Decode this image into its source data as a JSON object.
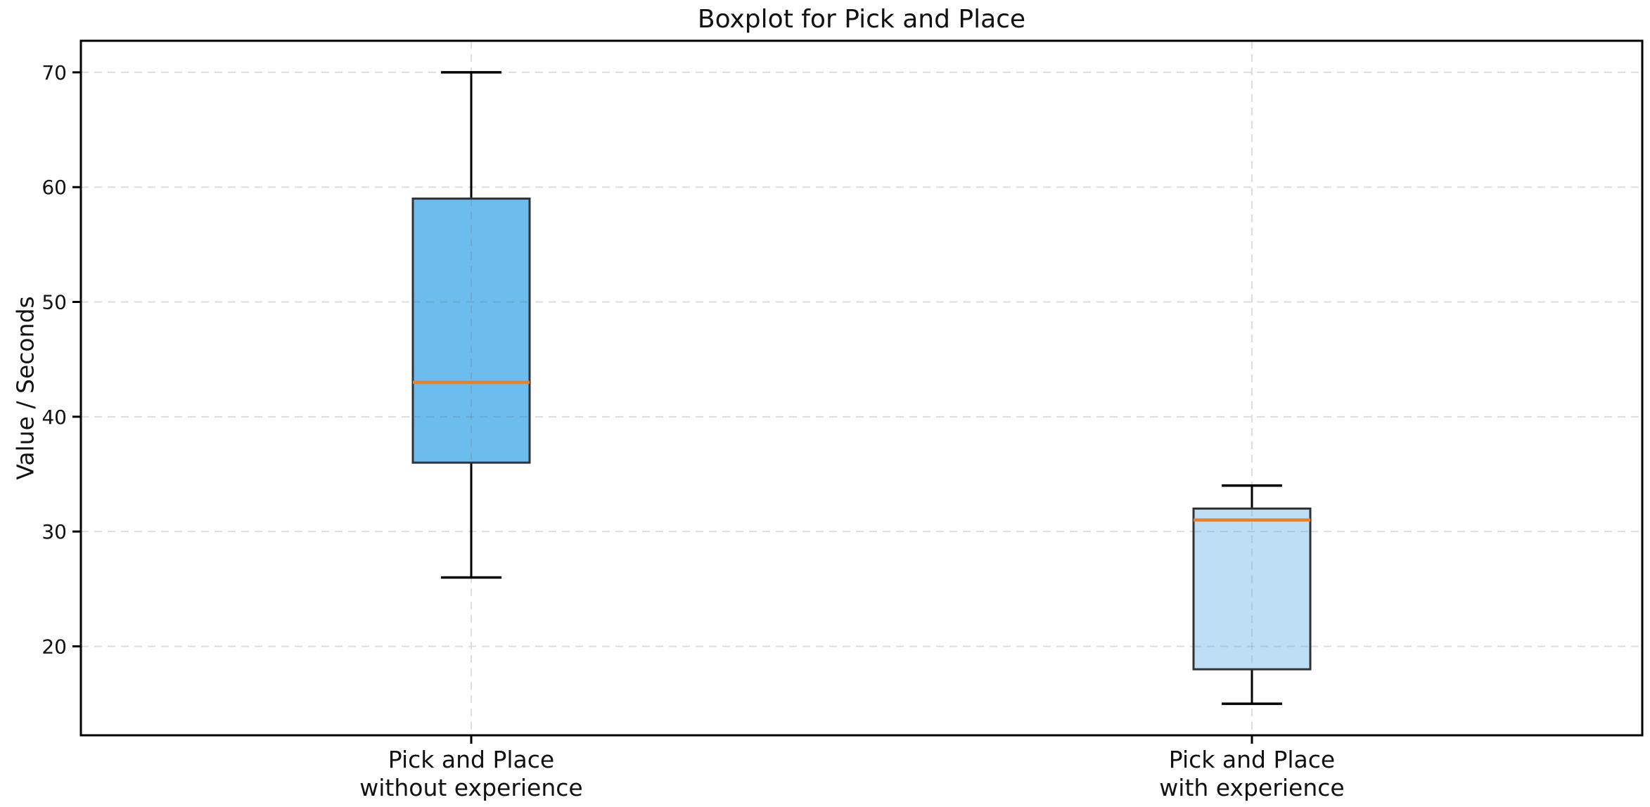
{
  "chart_data": {
    "type": "boxplot",
    "title": "Boxplot for Pick and Place",
    "ylabel": "Value / Seconds",
    "xlabel": "",
    "ylim": [
      12.25,
      72.75
    ],
    "yticks": [
      20,
      30,
      40,
      50,
      60,
      70
    ],
    "grid": true,
    "grid_style": "dashed",
    "legend": "none",
    "categories": [
      "Pick and Place\nwithout experience",
      "Pick and Place\nwith experience"
    ],
    "series": [
      {
        "name": "Pick and Place without experience",
        "whisker_low": 26,
        "q1": 36,
        "median": 43,
        "q3": 59,
        "whisker_high": 70,
        "box_color": "#6CBCEE"
      },
      {
        "name": "Pick and Place with experience",
        "whisker_low": 15,
        "q1": 18,
        "median": 31,
        "q3": 32,
        "whisker_high": 34,
        "box_color": "#BDDEF5"
      }
    ],
    "median_color": "#F07E1C",
    "box_edge_color": "#333333",
    "whisker_color": "#000000",
    "spine_color": "#000000",
    "grid_color": "#DDDDDD",
    "text_color": "#111111"
  }
}
